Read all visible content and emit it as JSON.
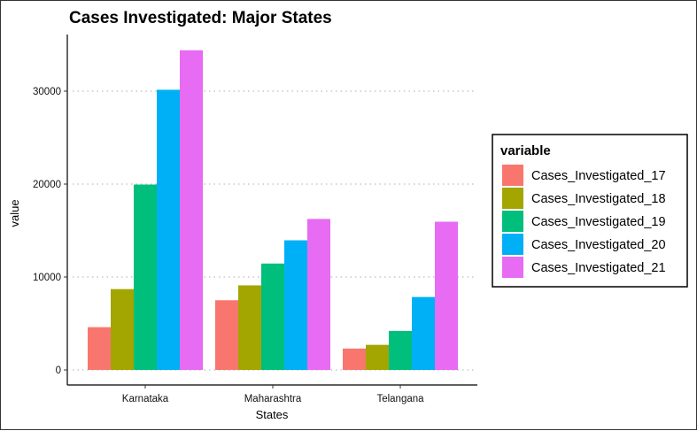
{
  "chart_data": {
    "type": "bar",
    "title": "Cases Investigated: Major States",
    "xlabel": "States",
    "ylabel": "value",
    "categories": [
      "Karnataka",
      "Maharashtra",
      "Telangana"
    ],
    "series": [
      {
        "name": "Cases_Investigated_17",
        "values": [
          4600,
          7500,
          2300
        ],
        "color": "#F8766D"
      },
      {
        "name": "Cases_Investigated_18",
        "values": [
          8700,
          9100,
          2700
        ],
        "color": "#A3A500"
      },
      {
        "name": "Cases_Investigated_19",
        "values": [
          19950,
          11450,
          4200
        ],
        "color": "#00BF7D"
      },
      {
        "name": "Cases_Investigated_20",
        "values": [
          30150,
          13950,
          7850
        ],
        "color": "#00B0F6"
      },
      {
        "name": "Cases_Investigated_21",
        "values": [
          34400,
          16250,
          15950
        ],
        "color": "#E76BF3"
      }
    ],
    "ylim": [
      0,
      36500
    ],
    "yticks": [
      0,
      10000,
      20000,
      30000
    ],
    "grid": "horizontal-dotted",
    "legend": {
      "title": "variable",
      "position": "right"
    }
  }
}
